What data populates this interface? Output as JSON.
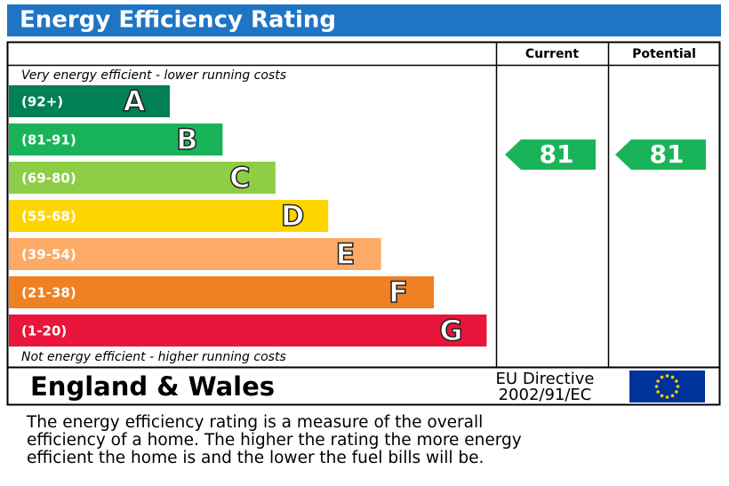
{
  "title": "Energy Efficiency Rating",
  "columns": [
    "Current",
    "Potential"
  ],
  "top_note": "Very energy efficient - lower running costs",
  "bottom_note": "Not energy efficient - higher running costs",
  "bands": [
    {
      "range": "(92+)",
      "letter": "A",
      "color": "#008054"
    },
    {
      "range": "(81-91)",
      "letter": "B",
      "color": "#19b459"
    },
    {
      "range": "(69-80)",
      "letter": "C",
      "color": "#8dce46"
    },
    {
      "range": "(55-68)",
      "letter": "D",
      "color": "#ffd500"
    },
    {
      "range": "(39-54)",
      "letter": "E",
      "color": "#fcaa65"
    },
    {
      "range": "(21-38)",
      "letter": "F",
      "color": "#ef8023"
    },
    {
      "range": "(1-20)",
      "letter": "G",
      "color": "#e9153b"
    }
  ],
  "current": {
    "value": 81,
    "color": "#19b459"
  },
  "potential": {
    "value": 81,
    "color": "#19b459"
  },
  "region": "England & Wales",
  "directive": [
    "EU Directive",
    "2002/91/EC"
  ],
  "description": [
    "The energy efficiency rating is a measure of the overall",
    "efficiency of a home.  The higher the rating the more energy",
    "efficient the home is and the lower the fuel bills will be."
  ]
}
